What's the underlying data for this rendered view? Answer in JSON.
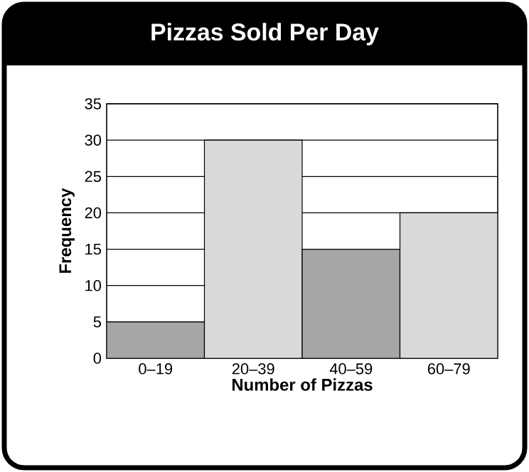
{
  "chart_data": {
    "type": "bar",
    "title": "Pizzas Sold Per Day",
    "xlabel": "Number of Pizzas",
    "ylabel": "Frequency",
    "categories": [
      "0–19",
      "20–39",
      "40–59",
      "60–79"
    ],
    "values": [
      5,
      30,
      15,
      20
    ],
    "colors": [
      "#a6a6a6",
      "#d9d9d9",
      "#a6a6a6",
      "#d9d9d9"
    ],
    "ylim": [
      0,
      35
    ],
    "yticks": [
      0,
      5,
      10,
      15,
      20,
      25,
      30,
      35
    ],
    "grid": "y"
  }
}
